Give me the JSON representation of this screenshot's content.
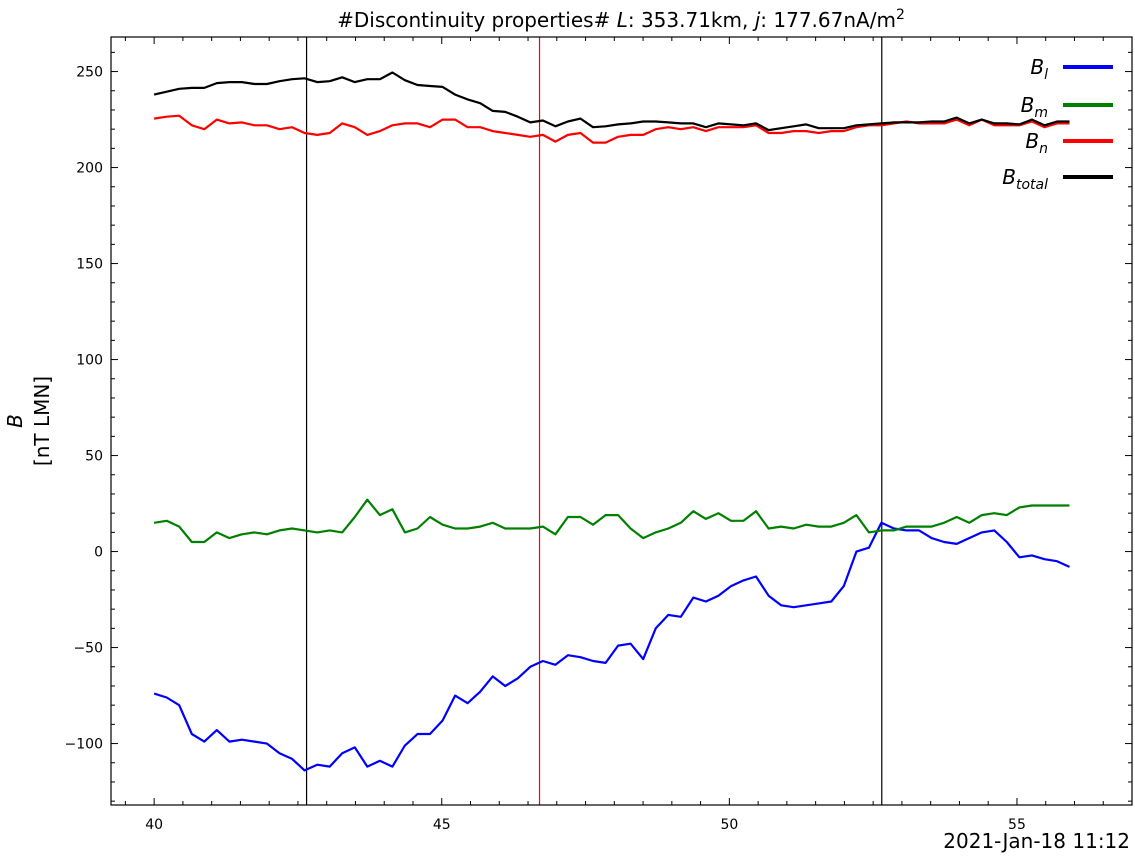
{
  "chart_data": {
    "type": "line",
    "title_prefix": "#Discontinuity properties# ",
    "title_L_symbol": "L",
    "title_L_value": ": 353.71km, ",
    "title_j_symbol": "j",
    "title_j_value": ": 177.67nA/m",
    "title_j_exponent": "2",
    "ylabel_symbol": "B",
    "ylabel_unit": "[nT LMN]",
    "date_label": "2021-Jan-18 11:12",
    "xlim": [
      39.25,
      57.0
    ],
    "ylim": [
      -132,
      268
    ],
    "x_major_ticks": [
      40,
      45,
      50,
      55
    ],
    "x_tick_labels": [
      "40",
      "45",
      "50",
      "55"
    ],
    "y_major_ticks": [
      -100,
      -50,
      0,
      50,
      100,
      150,
      200,
      250
    ],
    "y_tick_labels": [
      "−100",
      "−50",
      "0",
      "50",
      "100",
      "150",
      "200",
      "250"
    ],
    "x_start": 40.0,
    "x_step": 0.218,
    "vertical_lines": [
      {
        "x": 42.65,
        "color": "#000000"
      },
      {
        "x": 46.7,
        "color": "#ff0000"
      },
      {
        "x": 52.65,
        "color": "#000000"
      }
    ],
    "series": [
      {
        "name": "B",
        "subscript": "l",
        "color": "#0000ff",
        "values": [
          -74,
          -76,
          -80,
          -95,
          -99,
          -93,
          -99,
          -98,
          -99,
          -100,
          -105,
          -108,
          -114,
          -111,
          -112,
          -105,
          -102,
          -112,
          -109,
          -112,
          -101,
          -95,
          -95,
          -88,
          -75,
          -79,
          -73,
          -65,
          -70,
          -66,
          -60,
          -57,
          -59,
          -54,
          -55,
          -57,
          -58,
          -49,
          -48,
          -56,
          -40,
          -33,
          -34,
          -24,
          -26,
          -23,
          -18,
          -15,
          -13,
          -23,
          -28,
          -29,
          -28,
          -27,
          -26,
          -18,
          0,
          2,
          15,
          12,
          11,
          11,
          7,
          5,
          4,
          7,
          10,
          11,
          5,
          -3,
          -2,
          -4,
          -5,
          -8
        ]
      },
      {
        "name": "B",
        "subscript": "m",
        "color": "#008000",
        "values": [
          15,
          16,
          13,
          5,
          5,
          10,
          7,
          9,
          10,
          9,
          11,
          12,
          11,
          10,
          11,
          10,
          18,
          27,
          19,
          22,
          10,
          12,
          18,
          14,
          12,
          12,
          13,
          15,
          12,
          12,
          12,
          13,
          9,
          18,
          18,
          14,
          19,
          19,
          12,
          7,
          10,
          12,
          15,
          21,
          17,
          20,
          16,
          16,
          21,
          12,
          13,
          12,
          14,
          13,
          13,
          15,
          19,
          10,
          11,
          11,
          13,
          13,
          13,
          15,
          18,
          15,
          19,
          20,
          19,
          23,
          24,
          24,
          24,
          24
        ]
      },
      {
        "name": "B",
        "subscript": "n",
        "color": "#ff0000",
        "values": [
          225.5,
          226.5,
          227,
          222,
          220,
          225,
          223,
          223.5,
          222,
          222,
          220,
          221,
          218,
          217,
          218,
          223,
          221,
          217,
          219,
          222,
          223,
          223,
          221,
          225,
          225,
          221,
          221,
          219,
          218,
          217,
          216,
          217,
          213.5,
          217,
          218,
          213,
          213,
          216,
          217,
          217,
          220,
          221,
          220,
          221,
          219,
          221,
          221,
          221,
          222,
          218,
          218,
          219,
          219,
          218,
          219,
          219,
          221,
          222,
          222,
          223,
          224,
          223,
          223,
          223,
          225,
          222,
          225,
          222,
          222,
          222,
          224,
          221,
          223,
          223
        ]
      },
      {
        "name": "B",
        "subscript": "total",
        "color": "#000000",
        "values": [
          238,
          239.5,
          241,
          241.5,
          241.5,
          244,
          244.5,
          244.5,
          243.5,
          243.5,
          245,
          246,
          246.5,
          244.5,
          245,
          247,
          244.5,
          246,
          246,
          249.5,
          245.5,
          243,
          242.5,
          242,
          238,
          235.5,
          233.5,
          229.5,
          229,
          226.5,
          223.5,
          224.5,
          221.5,
          224,
          225.5,
          221,
          221.5,
          222.5,
          223,
          224,
          224,
          223.5,
          223,
          223,
          221,
          223,
          222.5,
          222,
          223,
          219.5,
          220.5,
          221.5,
          222.5,
          220.5,
          220.5,
          220.5,
          222,
          222.5,
          223,
          223.5,
          223.5,
          223.5,
          224,
          224,
          226,
          223,
          225,
          223,
          223,
          222.5,
          225,
          222,
          224,
          224
        ]
      }
    ],
    "legend_position": "top-right"
  }
}
